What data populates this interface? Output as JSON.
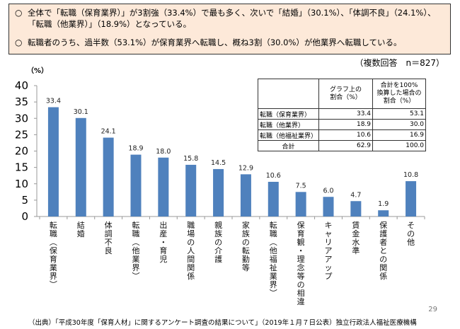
{
  "summary": {
    "bullet": "○",
    "line1": "全体で「転職（保育業界）」が3割強（33.4%）で最も多く、次いで「結婚」（30.1%）、「体調不良」（24.1%）、",
    "line1_cont": "「転職（他業界）」（18.9%）となっている。",
    "line2": "転職者のうち、過半数（53.1%）が保育業界へ転職し、概ね3割（30.0%）が他業界へ転職している。"
  },
  "note": "（複数回答　n＝827）",
  "table": {
    "headers": [
      "",
      "グラフ上の\n割合（%）",
      "合計を100%\n換算した場合の\n割合（%）"
    ],
    "rows": [
      {
        "label": "転職（保育業界）",
        "graph": "33.4",
        "normalized": "53.1"
      },
      {
        "label": "転職（他業界）",
        "graph": "18.9",
        "normalized": "30.0"
      },
      {
        "label": "転職（他福祉業界）",
        "graph": "10.6",
        "normalized": "16.9"
      },
      {
        "label": "合計",
        "graph": "62.9",
        "normalized": "100.0"
      }
    ]
  },
  "chart_data": {
    "type": "bar",
    "title": "",
    "ylabel": "（%）",
    "xlabel": "",
    "ylim": [
      0,
      40
    ],
    "yticks": [
      0,
      5,
      10,
      15,
      20,
      25,
      30,
      35,
      40
    ],
    "grid": false,
    "bar_color": "#4f81bd",
    "categories": [
      "転職（保育業界）",
      "結婚",
      "体調不良",
      "転職（他業界）",
      "出産・育児",
      "職場の人間関係",
      "親族の介護",
      "家族の転勤等",
      "転職（他福祉業界）",
      "保育観・理念等の相違",
      "キャリアアップ",
      "賃金水準",
      "保護者との関係",
      "その他"
    ],
    "values": [
      33.4,
      30.1,
      24.1,
      18.9,
      18.0,
      15.8,
      14.5,
      12.9,
      10.6,
      7.5,
      6.0,
      4.7,
      1.9,
      10.8
    ],
    "value_labels": [
      "33.4",
      "30.1",
      "24.1",
      "18.9",
      "18.0",
      "15.8",
      "14.5",
      "12.9",
      "10.6",
      "7.5",
      "6.0",
      "4.7",
      "1.9",
      "10.8"
    ]
  },
  "page_number": "29",
  "source": "（出典）「平成30年度「保育人材」に関するアンケート調査の結果について」（2019年１月７日公表）独立行政法人福祉医療機構"
}
